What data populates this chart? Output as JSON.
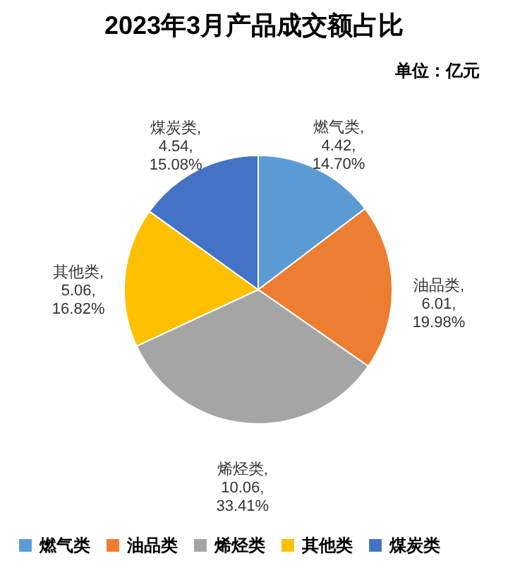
{
  "chart_data": {
    "type": "pie",
    "title": "2023年3月产品成交额占比",
    "annotations": [
      "单位：亿元"
    ],
    "categories": [
      "燃气类",
      "油品类",
      "烯烃类",
      "其他类",
      "煤炭类"
    ],
    "values": [
      4.42,
      6.01,
      10.06,
      5.06,
      4.54
    ],
    "colors": [
      "#5b9bd5",
      "#ed7d31",
      "#a5a5a5",
      "#ffc000",
      "#4472c4"
    ],
    "value_labels": [
      "燃气类,\n4.42,\n14.70%",
      "油品类,\n6.01,\n19.98%",
      "烯烃类,\n10.06,\n33.41%",
      "其他类,\n5.06,\n16.82%",
      "煤炭类,\n4.54,\n15.08%"
    ],
    "legend": "bottom"
  }
}
